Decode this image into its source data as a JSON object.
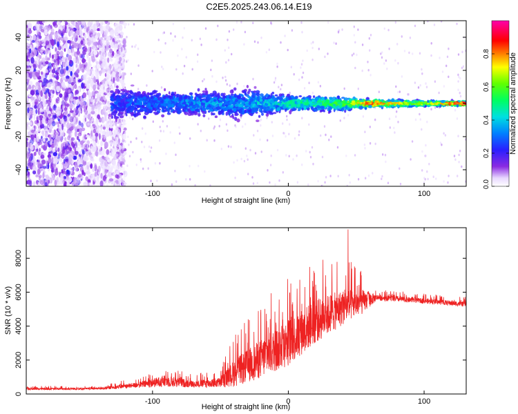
{
  "title": "C2E5.2025.243.06.14.E19",
  "chart_data": [
    {
      "type": "heatmap",
      "name": "spectrogram",
      "xlabel": "Height of straight line (km)",
      "ylabel": "Frequency (Hz)",
      "xlim": [
        -193,
        131
      ],
      "ylim": [
        -50,
        50
      ],
      "xticks": [
        "-100",
        "0",
        "100"
      ],
      "xtick_values": [
        -100,
        0,
        100
      ],
      "yticks": [
        "40",
        "20",
        "0",
        "-20",
        "-40"
      ],
      "ytick_values": [
        40,
        20,
        0,
        -20,
        -40
      ],
      "colorbar": {
        "label": "Normalized spectral amplitude",
        "range": [
          0,
          1
        ],
        "ticks": [
          "0.0",
          "0.2",
          "0.4",
          "0.6",
          "0.8"
        ],
        "tick_values": [
          0.0,
          0.2,
          0.4,
          0.6,
          0.8
        ]
      },
      "signal_band": {
        "center_hz": 0,
        "start_km": -130,
        "profile": [
          {
            "x": -130,
            "halfwidth_hz": 12,
            "peak_amplitude": 0.25
          },
          {
            "x": -100,
            "halfwidth_hz": 10,
            "peak_amplitude": 0.3
          },
          {
            "x": -60,
            "halfwidth_hz": 9,
            "peak_amplitude": 0.35
          },
          {
            "x": -30,
            "halfwidth_hz": 11,
            "peak_amplitude": 0.35
          },
          {
            "x": 0,
            "halfwidth_hz": 6,
            "peak_amplitude": 0.45
          },
          {
            "x": 40,
            "halfwidth_hz": 5,
            "peak_amplitude": 0.55
          },
          {
            "x": 60,
            "halfwidth_hz": 3,
            "peak_amplitude": 0.8
          },
          {
            "x": 100,
            "halfwidth_hz": 2,
            "peak_amplitude": 0.6
          },
          {
            "x": 131,
            "halfwidth_hz": 1.5,
            "peak_amplitude": 0.9
          }
        ]
      }
    },
    {
      "type": "line",
      "name": "snr",
      "color": "#ee2222",
      "xlabel": "Height of straight line (km)",
      "ylabel": "SNR (10 * v/v)",
      "xlim": [
        -193,
        131
      ],
      "ylim": [
        0,
        9800
      ],
      "xticks": [
        "-100",
        "0",
        "100"
      ],
      "xtick_values": [
        -100,
        0,
        100
      ],
      "yticks": [
        "0",
        "2000",
        "4000",
        "6000",
        "8000"
      ],
      "ytick_values": [
        0,
        2000,
        4000,
        6000,
        8000
      ],
      "envelope": [
        {
          "x": -193,
          "mean": 300,
          "noise": 120
        },
        {
          "x": -140,
          "mean": 320,
          "noise": 120
        },
        {
          "x": -110,
          "mean": 550,
          "noise": 350
        },
        {
          "x": -90,
          "mean": 800,
          "noise": 700
        },
        {
          "x": -70,
          "mean": 600,
          "noise": 400
        },
        {
          "x": -50,
          "mean": 700,
          "noise": 600
        },
        {
          "x": -40,
          "mean": 1300,
          "noise": 1600
        },
        {
          "x": -20,
          "mean": 2200,
          "noise": 2300
        },
        {
          "x": 0,
          "mean": 3200,
          "noise": 2800
        },
        {
          "x": 20,
          "mean": 4400,
          "noise": 2600
        },
        {
          "x": 40,
          "mean": 5200,
          "noise": 2100
        },
        {
          "x": 55,
          "mean": 5500,
          "noise": 1400
        },
        {
          "x": 65,
          "mean": 5700,
          "noise": 350
        },
        {
          "x": 100,
          "mean": 5500,
          "noise": 300
        },
        {
          "x": 131,
          "mean": 5300,
          "noise": 300
        }
      ],
      "max": {
        "x": 44,
        "y": 9700
      }
    }
  ]
}
